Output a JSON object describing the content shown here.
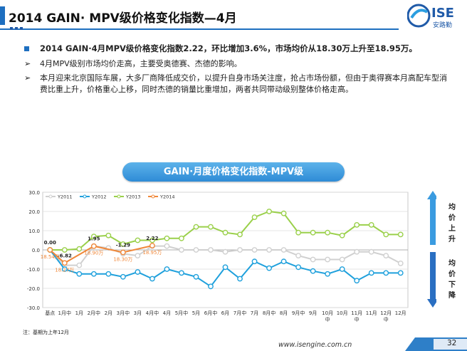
{
  "header": {
    "title": "2014 GAIN· MPV级价格变化指数—4月"
  },
  "logo": {
    "text": "ISE",
    "sub": "安路勤"
  },
  "bullets": [
    {
      "text": "2014 GAIN·4月MPV级价格变化指数2.22，环比增加3.6%，市场均价从18.30万上升至18.95万。"
    },
    {
      "text": "4月MPV级别市场均价走高，主要受奥德赛、杰德的影响。"
    },
    {
      "text": "本月迎来北京国际车展，大多厂商降低成交价，以提升自身市场关注度，抢占市场份额，但由于奥得赛本月高配车型消费比重上升，价格重心上移，同时杰德的销量比重增加，两者共同带动级别整体价格走高。"
    }
  ],
  "chart_title": "GAIN·月度价格变化指数-MPV级",
  "side": {
    "up": "均价上升",
    "down": "均价下降"
  },
  "note": "注：基期为上年12月",
  "footer": {
    "url": "www.isengine.com.cn",
    "page": "32"
  },
  "colors": {
    "y2011": "#d0d0d0",
    "y2012": "#1ea0dc",
    "y2013": "#9ad04a",
    "y2014": "#f0883a",
    "accent": "#1e6fc0"
  },
  "chart_data": {
    "type": "line",
    "x": [
      "基点",
      "1月中",
      "1月",
      "2月中",
      "2月",
      "3月中",
      "3月",
      "4月中",
      "4月",
      "5月中",
      "5月",
      "6月中",
      "6月",
      "7月中",
      "7月",
      "8月中",
      "8月",
      "9月中",
      "9月",
      "10月中",
      "10月",
      "11月中",
      "11月",
      "12月中",
      "12月"
    ],
    "x_display": [
      "基点",
      "1月中",
      "1月",
      "2月中",
      "2月",
      "3月中",
      "3月",
      "4月中",
      "4月",
      "5月中",
      "5月",
      "6月中",
      "6月",
      "7月中",
      "7月",
      "8月中",
      "8月",
      "9月中",
      "9月",
      "10月\n中",
      "10月",
      "11月\n中",
      "11月",
      "12月\n中",
      "12月"
    ],
    "ylim": [
      -30,
      30
    ],
    "yticks": [
      "30.0",
      "20.0",
      "10.0",
      "0.0",
      "-10.0",
      "-20.0",
      "-30.0"
    ],
    "grid": true,
    "legend_position": "top-left",
    "series": [
      {
        "name": "Y2011",
        "color": "#d0d0d0",
        "values": [
          0,
          -8,
          -8,
          2,
          1,
          -2,
          -3,
          2,
          2,
          0,
          0,
          0,
          -1,
          0,
          0,
          0,
          0,
          -3,
          -5,
          -5,
          -5,
          -1,
          -1,
          -3,
          -7
        ]
      },
      {
        "name": "Y2012",
        "color": "#1ea0dc",
        "values": [
          0,
          -10,
          -12.5,
          -12.5,
          -12.5,
          -14,
          -11.5,
          -15,
          -10,
          -12,
          -14,
          -19,
          -9,
          -15,
          -6,
          -9.5,
          -6,
          -9,
          -11,
          -12.5,
          -10,
          -16,
          -12,
          -12,
          -12
        ]
      },
      {
        "name": "Y2013",
        "color": "#9ad04a",
        "values": [
          0,
          0,
          0.5,
          7,
          7.5,
          3,
          5,
          5,
          6,
          6,
          12,
          12,
          9,
          8,
          17,
          20,
          19,
          9,
          9,
          9,
          7.5,
          13,
          13,
          8,
          8
        ]
      },
      {
        "name": "Y2014",
        "color": "#f0883a",
        "values": [
          0,
          -6.82,
          null,
          1.95,
          null,
          -1.29,
          null,
          2.22,
          null,
          null,
          null,
          null,
          null,
          null,
          null,
          null,
          null,
          null,
          null,
          null,
          null,
          null,
          null,
          null,
          null
        ]
      }
    ],
    "index_labels": [
      {
        "i": 0,
        "text": "0.00"
      },
      {
        "i": 1,
        "text": "-6.82"
      },
      {
        "i": 3,
        "text": "1.95"
      },
      {
        "i": 5,
        "text": "-1.29"
      },
      {
        "i": 7,
        "text": "2.22"
      }
    ],
    "price_labels": [
      {
        "i": 0,
        "text": "18.54万"
      },
      {
        "i": 1,
        "text": "18.27万"
      },
      {
        "i": 3,
        "text": "18.90万"
      },
      {
        "i": 5,
        "text": "18.30万"
      },
      {
        "i": 7,
        "text": "18.95万"
      }
    ]
  }
}
